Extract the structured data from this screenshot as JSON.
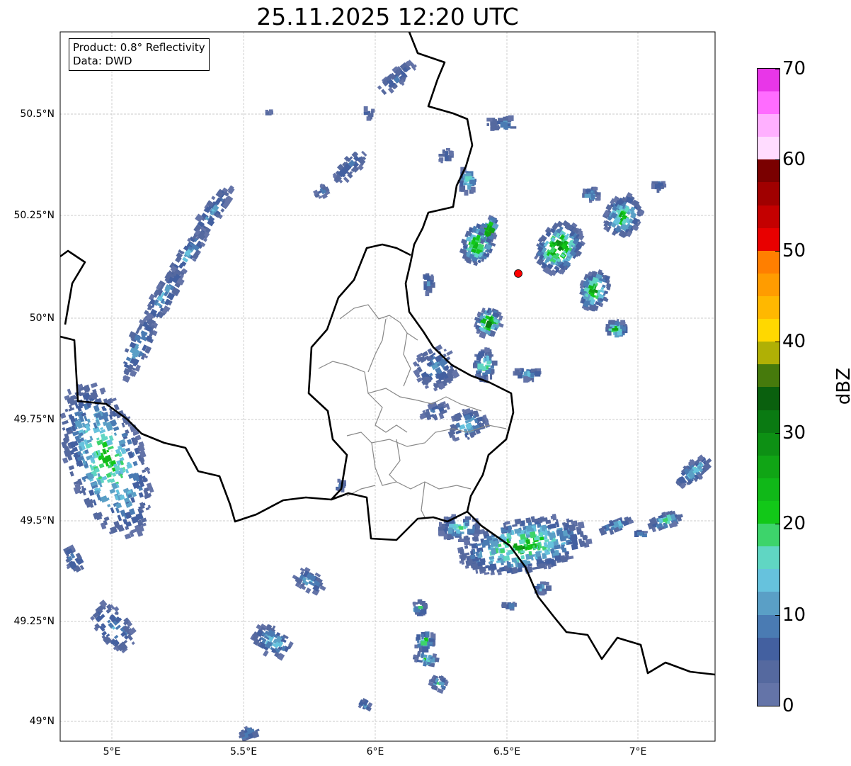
{
  "title": "25.11.2025 12:20 UTC",
  "info": {
    "product": "Product: 0.8° Reflectivity",
    "data": "Data: DWD"
  },
  "lon_ticks": [
    "5°E",
    "5.5°E",
    "6°E",
    "6.5°E",
    "7°E"
  ],
  "lat_ticks": [
    "50.5°N",
    "50.25°N",
    "50°N",
    "49.75°N",
    "49.5°N",
    "49.25°N",
    "49°N"
  ],
  "colorbar": {
    "label": "dBZ",
    "ticks": [
      "0",
      "10",
      "20",
      "30",
      "40",
      "50",
      "60",
      "70"
    ],
    "range": [
      0,
      70
    ],
    "step": 2.5,
    "colors": [
      "#6474a8",
      "#55699f",
      "#4360a0",
      "#4a7bb3",
      "#5a9fc6",
      "#66c2dd",
      "#60d6c3",
      "#3dd46b",
      "#12c818",
      "#10b818",
      "#10a515",
      "#0d9014",
      "#0a7a12",
      "#0a600e",
      "#467a0c",
      "#b0b005",
      "#ffd800",
      "#ffb800",
      "#ff9c00",
      "#ff7f00",
      "#e80000",
      "#c40000",
      "#a00000",
      "#7a0000",
      "#ffdcff",
      "#ffb0ff",
      "#ff6cff",
      "#e836e8"
    ]
  },
  "marker_color": "#ff0000"
}
